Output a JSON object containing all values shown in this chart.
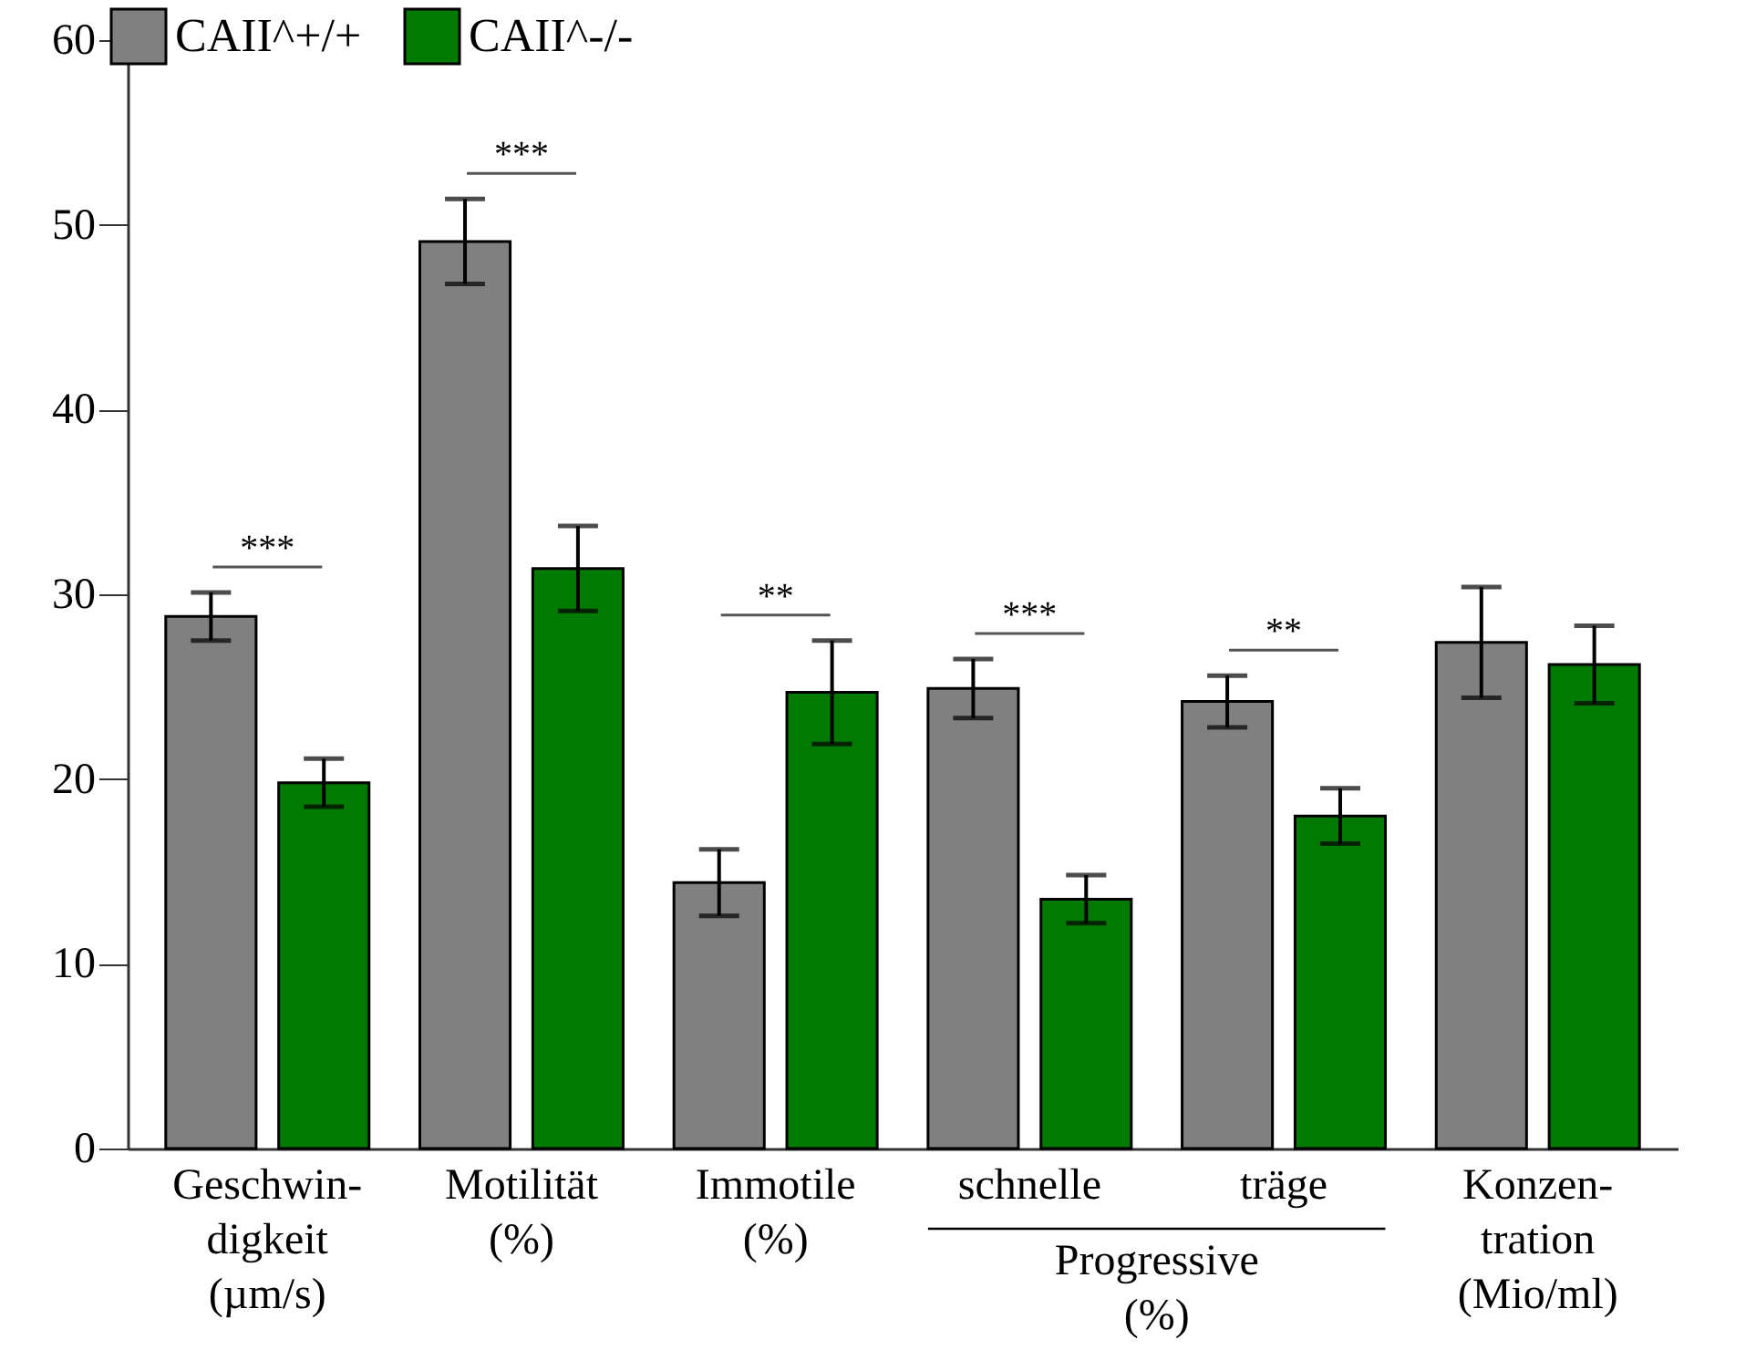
{
  "chart_data": {
    "type": "bar",
    "categories": [
      "Geschwin-\ndigkeit\n(µm/s)",
      "Motilität\n\n(%)",
      "Immotile\n\n(%)",
      "schnelle",
      "träge",
      "Konzen-\ntration\n(Mio/ml)"
    ],
    "series": [
      {
        "name": "CAII^+/+",
        "color": "#808080",
        "values": [
          28.8,
          49.1,
          14.4,
          24.9,
          24.2,
          27.4
        ],
        "errors": [
          1.3,
          2.3,
          1.8,
          1.6,
          1.4,
          3.0
        ]
      },
      {
        "name": "CAII^-/-",
        "color": "#007a00",
        "values": [
          19.8,
          31.4,
          24.7,
          13.5,
          18.0,
          26.2
        ],
        "errors": [
          1.3,
          2.3,
          2.8,
          1.3,
          1.5,
          2.1
        ]
      }
    ],
    "ylim": [
      0,
      60
    ],
    "yticks": [
      0,
      10,
      20,
      30,
      40,
      50,
      60
    ],
    "grid": false,
    "legend": "top left",
    "annotations": [
      "***",
      "***",
      "**",
      "***",
      "**",
      "Progressive\n(%)"
    ]
  }
}
